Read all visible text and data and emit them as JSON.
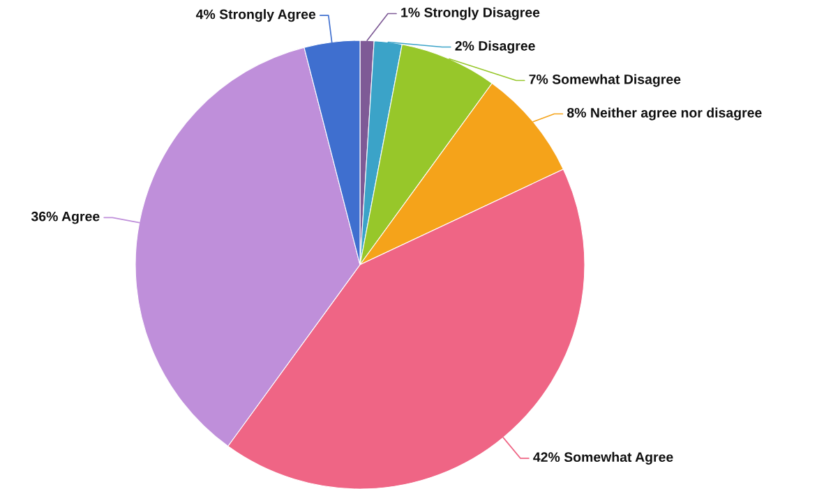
{
  "chart_data": {
    "type": "pie",
    "categories": [
      "Strongly Disagree",
      "Disagree",
      "Somewhat Disagree",
      "Neither agree nor disagree",
      "Somewhat Agree",
      "Agree",
      "Strongly Agree"
    ],
    "values": [
      1,
      2,
      7,
      8,
      42,
      36,
      4
    ],
    "value_labels": [
      "1%",
      "2%",
      "7%",
      "8%",
      "42%",
      "36%",
      "4%"
    ],
    "colors": [
      "#7e5a96",
      "#3ba3c8",
      "#97c72a",
      "#f5a31a",
      "#ef6585",
      "#bf8fda",
      "#3f6fcf"
    ]
  }
}
